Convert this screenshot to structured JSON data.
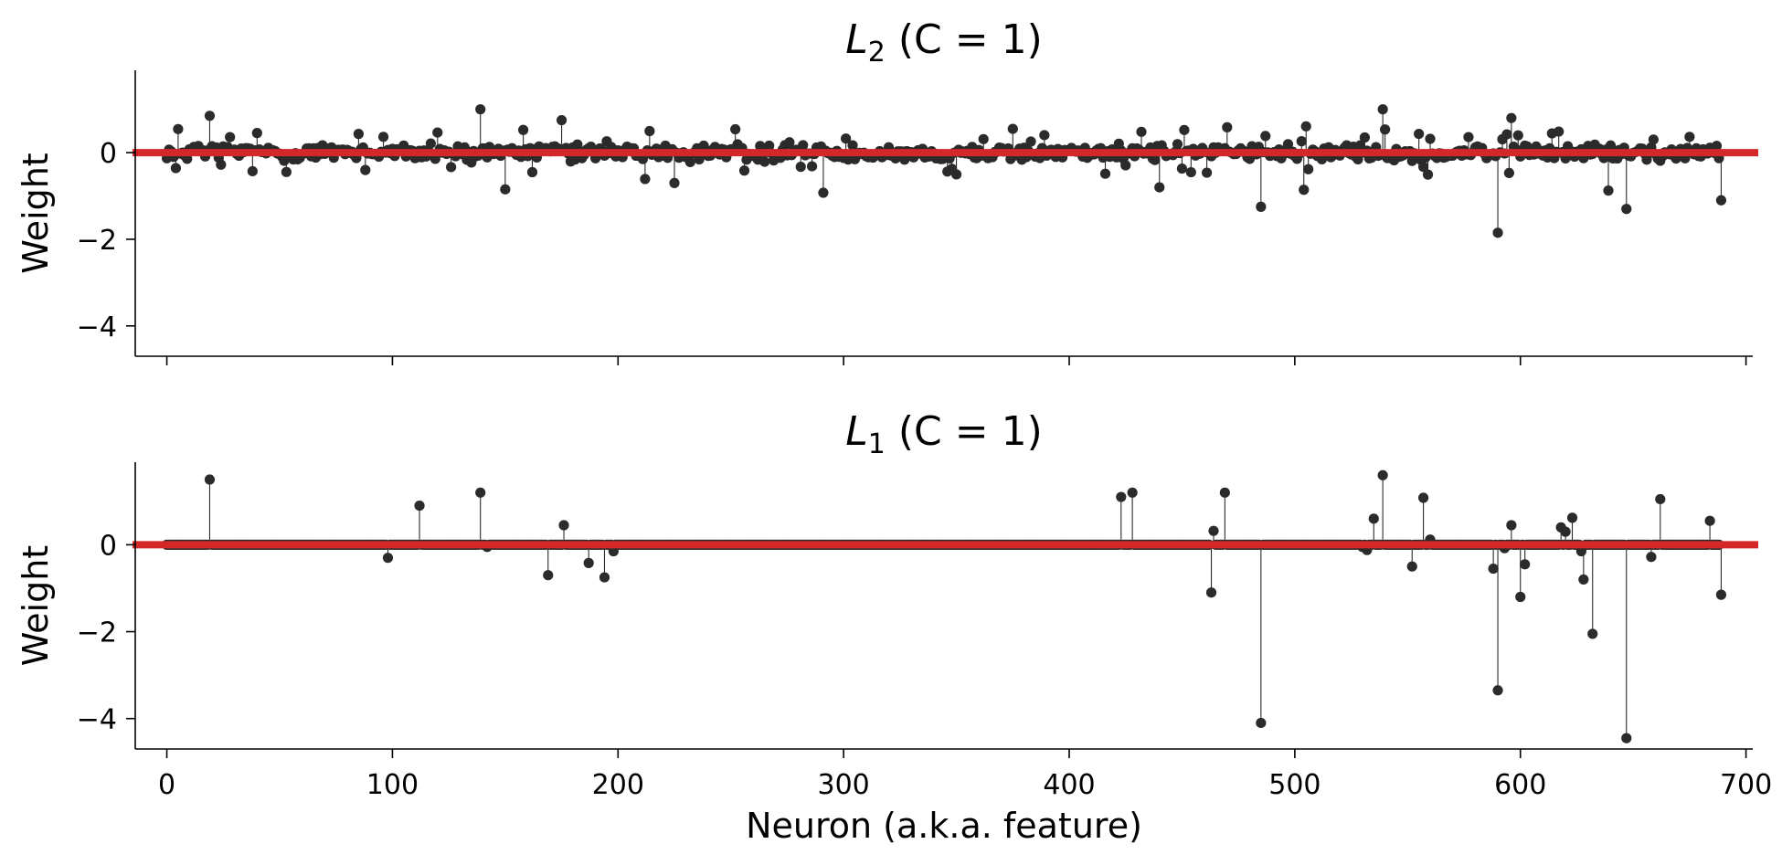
{
  "chart_data": [
    {
      "type": "stem",
      "title_symbol": "L",
      "title_subscript": "2",
      "title_rest": " (C = 1)",
      "xlabel": "",
      "ylabel": "Weight",
      "xlim": [
        -14,
        703
      ],
      "ylim": [
        -4.7,
        1.9
      ],
      "xticks": [
        0,
        100,
        200,
        300,
        400,
        500,
        600,
        700
      ],
      "show_xtick_labels": false,
      "yticks": [
        0,
        -2,
        -4
      ],
      "ytick_labels": [
        "0",
        "−2",
        "−4"
      ],
      "zero_line_color": "#d62728",
      "stem_color": "#2b2b2b",
      "grid": false,
      "n_points": 690,
      "notable_points": [
        [
          19,
          0.85
        ],
        [
          139,
          1.0
        ],
        [
          175,
          0.75
        ],
        [
          485,
          -1.25
        ],
        [
          539,
          1.0
        ],
        [
          590,
          -1.85
        ],
        [
          596,
          0.8
        ],
        [
          647,
          -1.3
        ],
        [
          689,
          -1.1
        ]
      ]
    },
    {
      "type": "stem",
      "title_symbol": "L",
      "title_subscript": "1",
      "title_rest": " (C = 1)",
      "xlabel": "Neuron (a.k.a. feature)",
      "ylabel": "Weight",
      "xlim": [
        -14,
        703
      ],
      "ylim": [
        -4.7,
        1.9
      ],
      "xticks": [
        0,
        100,
        200,
        300,
        400,
        500,
        600,
        700
      ],
      "xtick_labels": [
        "0",
        "100",
        "200",
        "300",
        "400",
        "500",
        "600",
        "700"
      ],
      "show_xtick_labels": true,
      "yticks": [
        0,
        -2,
        -4
      ],
      "ytick_labels": [
        "0",
        "−2",
        "−4"
      ],
      "zero_line_color": "#d62728",
      "stem_color": "#2b2b2b",
      "grid": false,
      "n_points": 690,
      "nonzero_points": [
        [
          19,
          1.5
        ],
        [
          98,
          -0.3
        ],
        [
          112,
          0.9
        ],
        [
          139,
          1.2
        ],
        [
          142,
          -0.05
        ],
        [
          169,
          -0.7
        ],
        [
          176,
          0.45
        ],
        [
          187,
          -0.42
        ],
        [
          194,
          -0.75
        ],
        [
          198,
          -0.15
        ],
        [
          423,
          1.1
        ],
        [
          428,
          1.2
        ],
        [
          463,
          -1.1
        ],
        [
          464,
          0.32
        ],
        [
          469,
          1.2
        ],
        [
          485,
          -4.1
        ],
        [
          530,
          -0.05
        ],
        [
          532,
          -0.12
        ],
        [
          535,
          0.6
        ],
        [
          539,
          1.6
        ],
        [
          552,
          -0.5
        ],
        [
          557,
          1.08
        ],
        [
          560,
          0.12
        ],
        [
          588,
          -0.55
        ],
        [
          590,
          -3.35
        ],
        [
          593,
          -0.08
        ],
        [
          596,
          0.45
        ],
        [
          600,
          -1.2
        ],
        [
          602,
          -0.45
        ],
        [
          618,
          0.4
        ],
        [
          620,
          0.3
        ],
        [
          623,
          0.62
        ],
        [
          627,
          -0.15
        ],
        [
          628,
          -0.8
        ],
        [
          632,
          -2.05
        ],
        [
          647,
          -4.45
        ],
        [
          658,
          -0.28
        ],
        [
          662,
          1.05
        ],
        [
          684,
          0.55
        ],
        [
          689,
          -1.15
        ]
      ]
    }
  ]
}
